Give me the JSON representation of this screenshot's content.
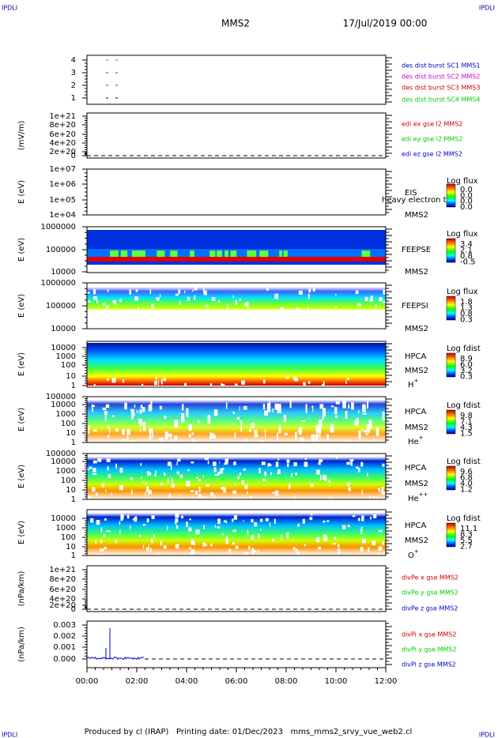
{
  "corner_labels": [
    "IPDLI",
    "IPDLI",
    "IPDLI",
    "IPDLI"
  ],
  "header": {
    "title": "MMS2",
    "date": "17/Jul/2019 00:00"
  },
  "panels": [
    {
      "ylabel": null,
      "yticks": [
        "4",
        "3",
        "2",
        "1"
      ],
      "legend": [
        {
          "text": "des dist burst SC1 MMS1",
          "color": "#0000cc"
        },
        {
          "text": "des dist burst SC2 MMS2",
          "color": "#cc00cc"
        },
        {
          "text": "des dist burst SC3 MMS3",
          "color": "#cc0000"
        },
        {
          "text": "des dist burst SC4 MMS4",
          "color": "#00cc00"
        }
      ]
    },
    {
      "ylabel": "(mV/m)",
      "yticks": [
        "1e+21",
        "8e+20",
        "6e+20",
        "4e+20",
        "2e+20",
        "0"
      ],
      "legend": [
        {
          "text": "edi ex gse l2 MMS2",
          "color": "#cc0000"
        },
        {
          "text": "edi ey gse l2 MMS2",
          "color": "#00cc00"
        },
        {
          "text": "edi ez gse l2 MMS2",
          "color": "#0000cc"
        }
      ]
    },
    {
      "ylabel": "E (eV)",
      "yticks": [
        "1e+07",
        "1e+06",
        "1e+05",
        "1e+04"
      ],
      "instrument": [
        "EIS",
        "heavy electron to",
        "MMS2"
      ],
      "colorbar": {
        "title": "Log flux",
        "labels": [
          "0.0",
          "0.0",
          "0.0",
          "0.0"
        ]
      }
    },
    {
      "ylabel": "E (eV)",
      "yticks": [
        "1000000",
        "100000",
        "10000"
      ],
      "instrument": [
        "FEEPSE",
        "MMS2"
      ],
      "colorbar": {
        "title": "Log flux",
        "labels": [
          "3.4",
          "2.1",
          "0.8",
          "-0.5"
        ]
      }
    },
    {
      "ylabel": "E (eV)",
      "yticks": [
        "1000000",
        "100000",
        "10000"
      ],
      "instrument": [
        "FEEPSI",
        "MMS2"
      ],
      "colorbar": {
        "title": "Log flux",
        "labels": [
          "1.8",
          "1.3",
          "0.8",
          "0.3"
        ]
      }
    },
    {
      "ylabel": "E (eV)",
      "yticks": [
        "10000",
        "1000",
        "100",
        "10",
        "1"
      ],
      "instrument": [
        "HPCA",
        "MMS2"
      ],
      "species": {
        "base": "H",
        "sup": "+"
      },
      "colorbar": {
        "title": "Log fdist",
        "labels": [
          "8.9",
          "6.0",
          "3.2",
          "0.3"
        ]
      }
    },
    {
      "ylabel": "E (eV)",
      "yticks": [
        "100000",
        "10000",
        "1000",
        "100",
        "10",
        "1"
      ],
      "instrument": [
        "HPCA",
        "MMS2"
      ],
      "species": {
        "base": "He",
        "sup": "+"
      },
      "colorbar": {
        "title": "Log fdist",
        "labels": [
          "9.8",
          "7.1",
          "4.3",
          "1.5"
        ]
      }
    },
    {
      "ylabel": "E (eV)",
      "yticks": [
        "100000",
        "10000",
        "1000",
        "100",
        "10",
        "1"
      ],
      "instrument": [
        "HPCA",
        "MMS2"
      ],
      "species": {
        "base": "He",
        "sup": "++"
      },
      "colorbar": {
        "title": "Log fdist",
        "labels": [
          "9.6",
          "6.8",
          "4.0",
          "1.2"
        ]
      }
    },
    {
      "ylabel": "E (eV)",
      "yticks": [
        "10000",
        "1000",
        "100",
        "10",
        "1"
      ],
      "instrument": [
        "HPCA",
        "MMS2"
      ],
      "species": {
        "base": "O",
        "sup": "+"
      },
      "colorbar": {
        "title": "Log fdist",
        "labels": [
          "11.1",
          "8.3",
          "5.5",
          "2.7"
        ]
      }
    },
    {
      "ylabel": "(nPa/km)",
      "yticks": [
        "1e+21",
        "8e+20",
        "6e+20",
        "4e+20",
        "2e+20",
        "0"
      ],
      "legend": [
        {
          "text": "divPe x gse MMS2",
          "color": "#cc0000"
        },
        {
          "text": "divPe y gse MMS2",
          "color": "#00cc00"
        },
        {
          "text": "divPe z gse MMS2",
          "color": "#0000cc"
        }
      ]
    },
    {
      "ylabel": "(nPa/km)",
      "yticks": [
        "0.003",
        "0.002",
        "0.001",
        "0.000"
      ],
      "legend": [
        {
          "text": "divPi x gse MMS2",
          "color": "#cc0000"
        },
        {
          "text": "divPi y gse MMS2",
          "color": "#00cc00"
        },
        {
          "text": "divPi z gse MMS2",
          "color": "#0000cc"
        }
      ]
    }
  ],
  "xticks": [
    "00:00",
    "02:00",
    "04:00",
    "06:00",
    "08:00",
    "10:00",
    "12:00"
  ],
  "footer": "Produced by cl (IRAP)   Printing date: 01/Dec/2023   mms_mms2_srvy_vue_web2.cl"
}
